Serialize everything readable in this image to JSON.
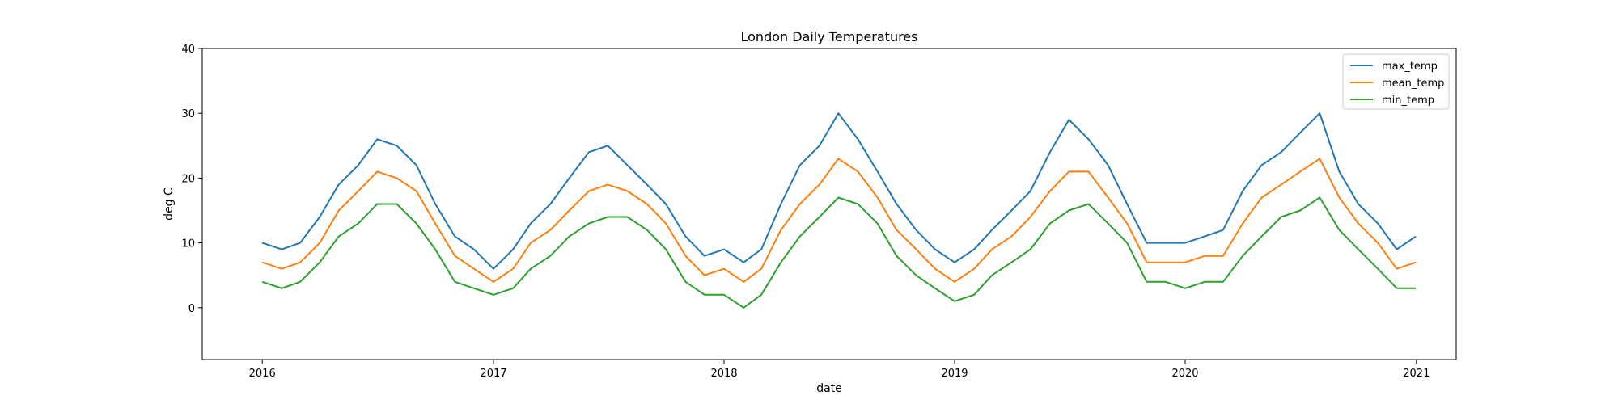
{
  "chart_data": {
    "type": "line",
    "title": "London Daily Temperatures",
    "xlabel": "date",
    "ylabel": "deg C",
    "xlim": [
      "2015-09-28",
      "2021-03-05"
    ],
    "ylim": [
      -8,
      40
    ],
    "x_ticks": [
      "2016-01-01",
      "2017-01-01",
      "2018-01-01",
      "2019-01-01",
      "2020-01-01",
      "2021-01-01"
    ],
    "x_tick_labels": [
      "2016",
      "2017",
      "2018",
      "2019",
      "2020",
      "2021"
    ],
    "y_ticks": [
      0,
      10,
      20,
      30,
      40
    ],
    "y_tick_labels": [
      "0",
      "10",
      "20",
      "30",
      "40"
    ],
    "grid": false,
    "legend_position": "top-right",
    "x": [
      "2016-01-01",
      "2016-02-01",
      "2016-03-01",
      "2016-04-01",
      "2016-05-01",
      "2016-06-01",
      "2016-07-01",
      "2016-08-01",
      "2016-09-01",
      "2016-10-01",
      "2016-11-01",
      "2016-12-01",
      "2017-01-01",
      "2017-02-01",
      "2017-03-01",
      "2017-04-01",
      "2017-05-01",
      "2017-06-01",
      "2017-07-01",
      "2017-08-01",
      "2017-09-01",
      "2017-10-01",
      "2017-11-01",
      "2017-12-01",
      "2018-01-01",
      "2018-02-01",
      "2018-03-01",
      "2018-04-01",
      "2018-05-01",
      "2018-06-01",
      "2018-07-01",
      "2018-08-01",
      "2018-09-01",
      "2018-10-01",
      "2018-11-01",
      "2018-12-01",
      "2019-01-01",
      "2019-02-01",
      "2019-03-01",
      "2019-04-01",
      "2019-05-01",
      "2019-06-01",
      "2019-07-01",
      "2019-08-01",
      "2019-09-01",
      "2019-10-01",
      "2019-11-01",
      "2019-12-01",
      "2020-01-01",
      "2020-02-01",
      "2020-03-01",
      "2020-04-01",
      "2020-05-01",
      "2020-06-01",
      "2020-07-01",
      "2020-08-01",
      "2020-09-01",
      "2020-10-01",
      "2020-11-01",
      "2020-12-01",
      "2020-12-31"
    ],
    "series": [
      {
        "name": "max_temp",
        "color": "#1f77b4",
        "values": [
          10,
          9,
          10,
          14,
          19,
          22,
          26,
          25,
          22,
          16,
          11,
          9,
          6,
          9,
          13,
          16,
          20,
          24,
          25,
          22,
          19,
          16,
          11,
          8,
          9,
          7,
          9,
          16,
          22,
          25,
          30,
          26,
          21,
          16,
          12,
          9,
          7,
          9,
          12,
          15,
          18,
          24,
          29,
          26,
          22,
          16,
          10,
          10,
          10,
          11,
          12,
          18,
          22,
          24,
          27,
          30,
          21,
          16,
          13,
          9,
          11
        ]
      },
      {
        "name": "mean_temp",
        "color": "#ff7f0e",
        "values": [
          7,
          6,
          7,
          10,
          15,
          18,
          21,
          20,
          18,
          13,
          8,
          6,
          4,
          6,
          10,
          12,
          15,
          18,
          19,
          18,
          16,
          13,
          8,
          5,
          6,
          4,
          6,
          12,
          16,
          19,
          23,
          21,
          17,
          12,
          9,
          6,
          4,
          6,
          9,
          11,
          14,
          18,
          21,
          21,
          17,
          13,
          7,
          7,
          7,
          8,
          8,
          13,
          17,
          19,
          21,
          23,
          17,
          13,
          10,
          6,
          7
        ]
      },
      {
        "name": "min_temp",
        "color": "#2ca02c",
        "values": [
          4,
          3,
          4,
          7,
          11,
          13,
          16,
          16,
          13,
          9,
          4,
          3,
          2,
          3,
          6,
          8,
          11,
          13,
          14,
          14,
          12,
          9,
          4,
          2,
          2,
          0,
          2,
          7,
          11,
          14,
          17,
          16,
          13,
          8,
          5,
          3,
          1,
          2,
          5,
          7,
          9,
          13,
          15,
          16,
          13,
          10,
          4,
          4,
          3,
          4,
          4,
          8,
          11,
          14,
          15,
          17,
          12,
          9,
          6,
          3,
          3
        ]
      }
    ]
  }
}
